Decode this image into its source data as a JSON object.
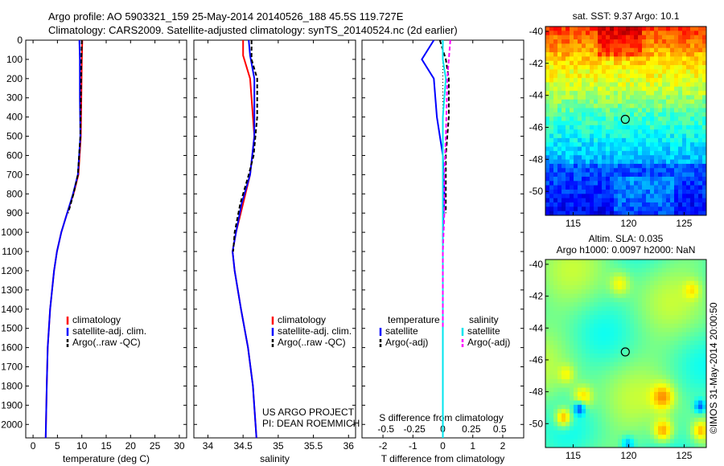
{
  "header": {
    "line1": "Argo profile: AO 5903321_159 25-May-2014 20140526_188 45.5S 119.727E",
    "line2": "Climatology: CARS2009. Satellite-adjusted climatology: synTS_20140524.nc (2d earlier)"
  },
  "colors": {
    "climatology": "#ff0000",
    "satellite": "#0000ff",
    "argo": "#000000",
    "sat_s": "#00e5ee",
    "argo_s": "#ff00ff"
  },
  "depth_ticks": [
    0,
    100,
    200,
    300,
    400,
    500,
    600,
    700,
    800,
    900,
    1000,
    1100,
    1200,
    1300,
    1400,
    1500,
    1600,
    1700,
    1800,
    1900,
    2000
  ],
  "chart_data": [
    {
      "type": "line",
      "xlabel": "temperature (deg C)",
      "xlim": [
        -1.5,
        31.5
      ],
      "ylim": [
        0,
        2070
      ],
      "xticks": [
        0,
        5,
        10,
        15,
        20,
        25,
        30
      ],
      "legend": [
        "climatology",
        "satellite-adj. clim.",
        "Argo(..raw -QC)"
      ],
      "series": [
        {
          "name": "climatology",
          "depth": [
            0,
            100,
            300,
            500,
            700,
            800,
            900,
            1000,
            1100,
            1200,
            1400,
            1600,
            1800,
            2070
          ],
          "values": [
            10.1,
            10.0,
            9.9,
            9.8,
            9.3,
            8.3,
            7.0,
            5.8,
            4.9,
            4.3,
            3.5,
            3.0,
            2.8,
            2.6
          ]
        },
        {
          "name": "satellite-adj. clim.",
          "depth": [
            0,
            100,
            300,
            500,
            700,
            800,
            900,
            1000,
            1100,
            1200,
            1400,
            1600,
            1800,
            2070
          ],
          "values": [
            9.5,
            9.6,
            9.6,
            9.7,
            9.2,
            8.2,
            7.0,
            5.8,
            4.9,
            4.3,
            3.5,
            3.0,
            2.8,
            2.6
          ]
        },
        {
          "name": "Argo(..raw -QC)",
          "depth": [
            0,
            100,
            300,
            500,
            700,
            800,
            900
          ],
          "values": [
            10.0,
            9.9,
            9.8,
            9.7,
            9.2,
            8.3,
            7.2
          ]
        }
      ]
    },
    {
      "type": "line",
      "xlabel": "salinity",
      "xlim": [
        33.8,
        36.1
      ],
      "ylim": [
        0,
        2070
      ],
      "xticks": [
        "34",
        "34.5",
        "35",
        "35.5",
        "36"
      ],
      "legend": [
        "climatology",
        "satellite-adj. clim.",
        "Argo(..raw -QC)"
      ],
      "annotations": [
        "US ARGO PROJECT",
        "PI: DEAN ROEMMICH"
      ],
      "series": [
        {
          "name": "climatology",
          "depth": [
            0,
            80,
            200,
            500,
            700,
            850,
            1000,
            1100,
            1200,
            1400,
            1600,
            1800,
            2070
          ],
          "values": [
            34.5,
            34.5,
            34.6,
            34.66,
            34.6,
            34.5,
            34.4,
            34.35,
            34.38,
            34.47,
            34.57,
            34.64,
            34.69
          ]
        },
        {
          "name": "satellite-adj. clim.",
          "depth": [
            0,
            80,
            200,
            500,
            700,
            850,
            1000,
            1100,
            1200,
            1400,
            1600,
            1800,
            2070
          ],
          "values": [
            34.58,
            34.6,
            34.66,
            34.66,
            34.6,
            34.48,
            34.4,
            34.35,
            34.38,
            34.47,
            34.57,
            34.64,
            34.69
          ]
        },
        {
          "name": "Argo(..raw -QC)",
          "depth": [
            0,
            100,
            200,
            400,
            600,
            700,
            850,
            1000,
            1100
          ],
          "values": [
            34.62,
            34.62,
            34.7,
            34.7,
            34.65,
            34.58,
            34.46,
            34.38,
            34.36
          ]
        }
      ]
    },
    {
      "type": "line",
      "xlabel": "T difference from climatology",
      "xlabel2": "S difference from climatology",
      "xlim": [
        -2.7,
        2.7
      ],
      "ylim": [
        0,
        2070
      ],
      "xticks": [
        "-2",
        "-1",
        "0",
        "1",
        "2"
      ],
      "xticks2": [
        "-0.5",
        "-0.25",
        "0",
        "0.25",
        "0.5"
      ],
      "legend_t": {
        "title": "temperature",
        "entries": [
          "satellite",
          "Argo(-adj)"
        ]
      },
      "legend_s": {
        "title": "salinity",
        "entries": [
          "satellite",
          "Argo(-adj)"
        ]
      },
      "series": [
        {
          "name": "temperature satellite",
          "depth": [
            0,
            100,
            200,
            400,
            600,
            800,
            1000,
            1200,
            1600,
            2070
          ],
          "values": [
            -0.3,
            -0.7,
            -0.3,
            -0.2,
            0.0,
            0.05,
            0.0,
            0.0,
            0.0,
            0.0
          ]
        },
        {
          "name": "temperature Argo(-adj)",
          "depth": [
            0,
            100,
            200,
            400,
            600,
            700,
            800,
            900
          ],
          "values": [
            -0.1,
            0.1,
            0.2,
            0.2,
            0.1,
            0.1,
            0.1,
            0.1
          ]
        },
        {
          "name": "salinity satellite",
          "depth": [
            0,
            100,
            200,
            400,
            600,
            800,
            1000,
            1200,
            1600,
            2070
          ],
          "values": [
            0.0,
            0.0,
            0.1,
            0.0,
            0.0,
            0.0,
            0.0,
            0.0,
            0.0,
            0.0
          ]
        },
        {
          "name": "salinity Argo(-adj)",
          "depth": [
            0,
            100,
            200,
            500,
            700,
            900,
            1100,
            1300,
            1500
          ],
          "values": [
            0.25,
            0.2,
            0.15,
            0.1,
            0.05,
            0.05,
            0.0,
            0.0,
            0.0
          ]
        }
      ]
    },
    {
      "type": "heatmap",
      "title": "sat. SST: 9.37 Argo: 10.1",
      "xticks": [
        "115",
        "120",
        "125"
      ],
      "yticks": [
        "-40",
        "-42",
        "-44",
        "-46",
        "-48",
        "-50"
      ],
      "xlim": [
        112.5,
        127
      ],
      "ylim": [
        -51.5,
        -39.7
      ],
      "marker": {
        "lon": 119.7,
        "lat": -45.5
      }
    },
    {
      "type": "heatmap",
      "title": "Altim. SLA: 0.035",
      "subtitle": "Argo h1000: 0.0097 h2000: NaN",
      "xticks": [
        "115",
        "120",
        "125"
      ],
      "yticks": [
        "-40",
        "-42",
        "-44",
        "-46",
        "-48",
        "-50"
      ],
      "xlim": [
        112.5,
        127
      ],
      "ylim": [
        -51.5,
        -39.7
      ],
      "marker": {
        "lon": 119.7,
        "lat": -45.5
      }
    }
  ],
  "footer": {
    "imos": "©IMOS 31-May-2014 20:00:50"
  }
}
